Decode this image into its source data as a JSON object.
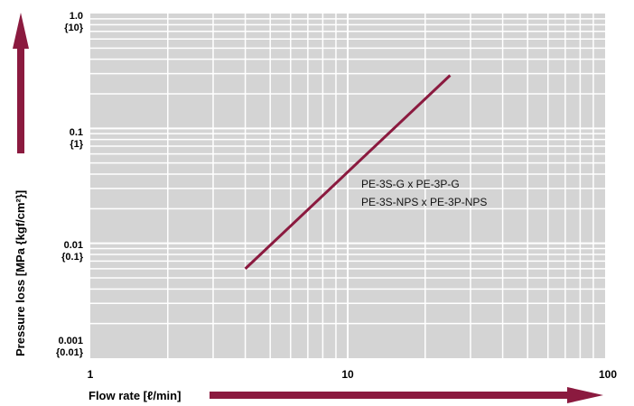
{
  "chart_data": {
    "type": "line",
    "title": "",
    "xlabel": "Flow rate [ℓ/min]",
    "ylabel": "Pressure loss [MPa {kgf/cm²}]",
    "xscale": "log",
    "yscale": "log",
    "xlim": [
      1,
      100
    ],
    "ylim": [
      0.001,
      1.0
    ],
    "grid": true,
    "x_ticks": [
      "1",
      "10",
      "100"
    ],
    "y_ticks": [
      {
        "value": 1.0,
        "label": "1.0",
        "sub": "{10}"
      },
      {
        "value": 0.1,
        "label": "0.1",
        "sub": "{1}"
      },
      {
        "value": 0.01,
        "label": "0.01",
        "sub": "{0.1}"
      },
      {
        "value": 0.001,
        "label": "0.001",
        "sub": "{0.01}"
      }
    ],
    "series": [
      {
        "x": [
          4,
          25
        ],
        "y": [
          0.006,
          0.29
        ],
        "color": "#8b1a3f"
      }
    ],
    "annotations": [
      "PE-3S-G x PE-3P-G",
      "PE-3S-NPS x PE-3P-NPS"
    ],
    "colors": {
      "plot_bg": "#d4d4d4",
      "grid": "#ffffff",
      "line": "#8b1a3f",
      "arrows": "#8b1a3f"
    }
  }
}
